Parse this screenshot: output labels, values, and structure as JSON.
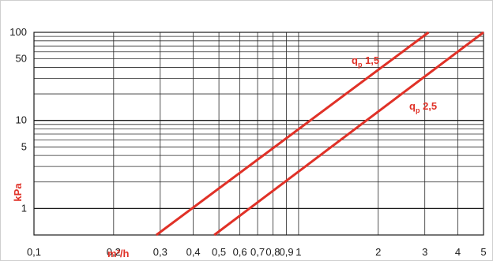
{
  "chart_data": {
    "type": "line",
    "x_scale": "log",
    "y_scale": "log",
    "xlim": [
      0.1,
      5
    ],
    "ylim": [
      0.5,
      100
    ],
    "xlabel": "m³/h",
    "ylabel": "kPa",
    "x_ticks": [
      "0,1",
      "0,2",
      "0,3",
      "0,4",
      "0,5",
      "0,6",
      "0,7",
      "0,8",
      "0,9",
      "1",
      "2",
      "3",
      "4",
      "5"
    ],
    "y_ticks": [
      "1",
      "5",
      "10",
      "50",
      "100"
    ],
    "grid": true,
    "series": [
      {
        "name_main": "q",
        "name_sub": "p",
        "name_rest": " 1,5",
        "color": "#e03127",
        "points": [
          [
            0.29,
            0.5
          ],
          [
            3.1,
            100
          ]
        ]
      },
      {
        "name_main": "q",
        "name_sub": "p",
        "name_rest": " 2,5",
        "color": "#e03127",
        "points": [
          [
            0.48,
            0.5
          ],
          [
            5.0,
            100
          ]
        ]
      }
    ]
  }
}
